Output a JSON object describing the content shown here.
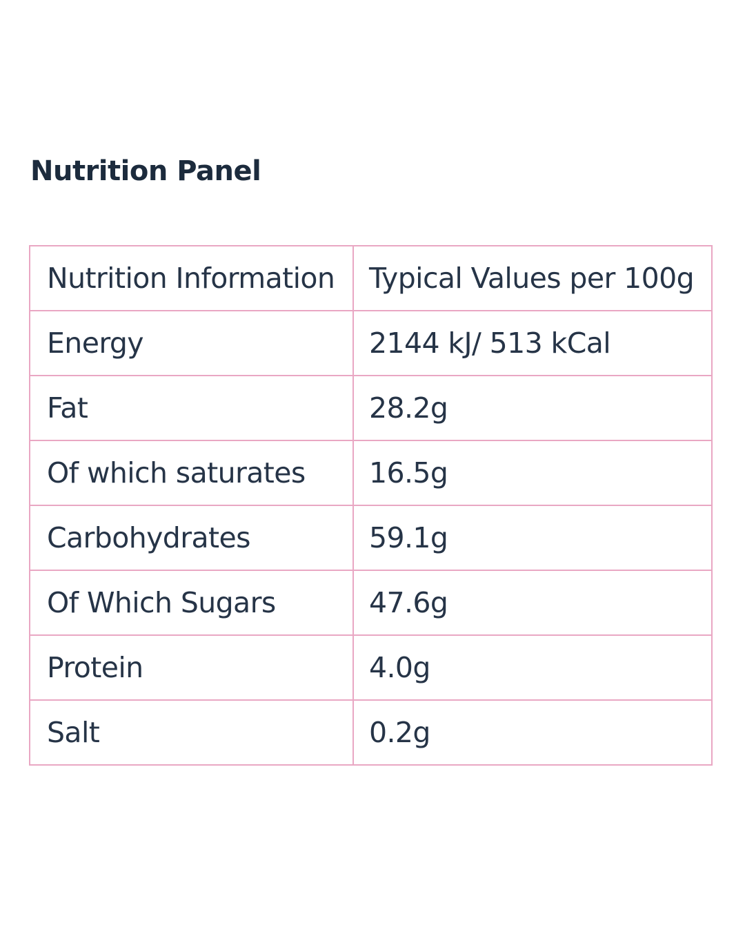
{
  "title": "Nutrition Panel",
  "table": {
    "header": {
      "label": "Nutrition Information",
      "value": "Typical Values per 100g"
    },
    "rows": [
      {
        "label": "Energy",
        "value": "2144 kJ/ 513 kCal"
      },
      {
        "label": "Fat",
        "value": "28.2g"
      },
      {
        "label": "Of which saturates",
        "value": "16.5g"
      },
      {
        "label": "Carbohydrates",
        "value": "59.1g"
      },
      {
        "label": "Of Which Sugars",
        "value": "47.6g"
      },
      {
        "label": "Protein",
        "value": "4.0g"
      },
      {
        "label": "Salt",
        "value": "0.2g"
      }
    ]
  },
  "colors": {
    "title_text": "#1c2b3d",
    "table_text": "#263447",
    "cell_border": "#e9a7c3",
    "outer_border": "#b05a78"
  }
}
